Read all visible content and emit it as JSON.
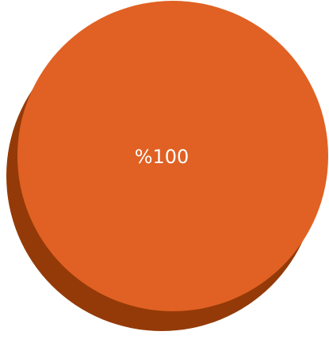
{
  "chart_data": {
    "type": "pie",
    "title": "",
    "slices": [
      {
        "label": "%100",
        "value": 100,
        "color": "#E06123",
        "shadow_color": "#943A08"
      }
    ]
  }
}
